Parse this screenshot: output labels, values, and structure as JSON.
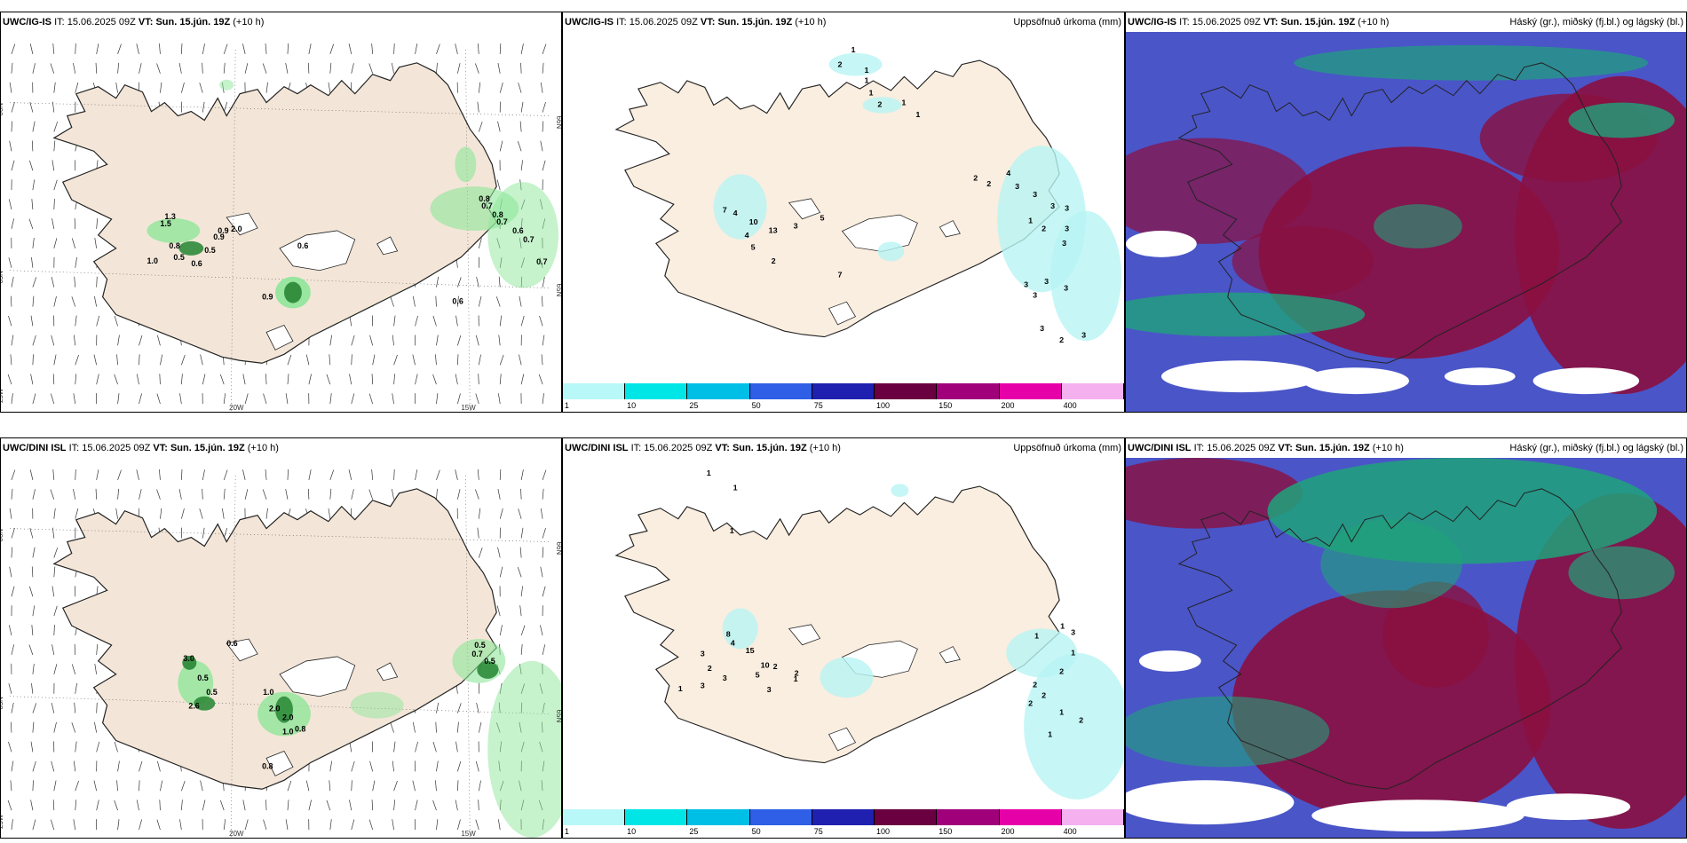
{
  "panels": [
    {
      "id": "tl",
      "model": "UWC/IG-IS",
      "it_label": "IT:",
      "it": "15.06.2025 09Z",
      "vt_label": "VT:",
      "vt": "Sun. 15.jún. 19Z",
      "lead": "(+10 h)",
      "title_right": "",
      "labels": [
        "1.3",
        "1.5",
        "0.8",
        "0.5",
        "0.9",
        "0.9",
        "2.0",
        "0.6",
        "1.0",
        "0.5",
        "0.6",
        "0.9",
        "0.8",
        "0.7",
        "0.8",
        "0.7",
        "0.6",
        "0.7",
        "0.7",
        "0.6"
      ],
      "axis": [
        "66N",
        "65N",
        "20W",
        "15W",
        "66N",
        "65N",
        "25W"
      ]
    },
    {
      "id": "tm",
      "model": "UWC/IG-IS",
      "it_label": "IT:",
      "it": "15.06.2025 09Z",
      "vt_label": "VT:",
      "vt": "Sun. 15.jún. 19Z",
      "lead": "(+10 h)",
      "title_right": "Uppsöfnuð úrkoma (mm)",
      "labels": [
        "1",
        "2",
        "1",
        "1",
        "1",
        "2",
        "1",
        "1",
        "2",
        "2",
        "4",
        "3",
        "3",
        "7",
        "4",
        "10",
        "4",
        "13",
        "5",
        "3",
        "5",
        "2",
        "7",
        "1",
        "2",
        "3",
        "3",
        "3",
        "3",
        "3",
        "3",
        "3",
        "3",
        "3",
        "2",
        "3"
      ]
    },
    {
      "id": "tr",
      "model": "UWC/IG-IS",
      "it_label": "IT:",
      "it": "15.06.2025 09Z",
      "vt_label": "VT:",
      "vt": "Sun. 15.jún. 19Z",
      "lead": "(+10 h)",
      "title_right": "Háský (gr.), miðský (fj.bl.) og lágský (bl.)"
    },
    {
      "id": "bl",
      "model": "UWC/DINI ISL",
      "it_label": "IT:",
      "it": "15.06.2025 09Z",
      "vt_label": "VT:",
      "vt": "Sun. 15.jún. 19Z",
      "lead": "(+10 h)",
      "title_right": "",
      "labels": [
        "3.0",
        "0.6",
        "0.5",
        "0.5",
        "2.6",
        "1.0",
        "2.0",
        "2.0",
        "1.0",
        "0.8",
        "0.8",
        "0.5",
        "0.7",
        "0.5"
      ],
      "axis": [
        "66N",
        "65N",
        "20W",
        "15W",
        "66N",
        "65N",
        "25W"
      ]
    },
    {
      "id": "bm",
      "model": "UWC/DINI ISL",
      "it_label": "IT:",
      "it": "15.06.2025 09Z",
      "vt_label": "VT:",
      "vt": "Sun. 15.jún. 19Z",
      "lead": "(+10 h)",
      "title_right": "Uppsöfnuð úrkoma (mm)",
      "labels": [
        "1",
        "1",
        "1",
        "8",
        "4",
        "15",
        "10",
        "5",
        "3",
        "2",
        "3",
        "3",
        "1",
        "3",
        "2",
        "2",
        "1",
        "1",
        "1",
        "3",
        "1",
        "2",
        "2",
        "2",
        "2",
        "1",
        "2",
        "1"
      ]
    },
    {
      "id": "br",
      "model": "UWC/DINI ISL",
      "it_label": "IT:",
      "it": "15.06.2025 09Z",
      "vt_label": "VT:",
      "vt": "Sun. 15.jún. 19Z",
      "lead": "(+10 h)",
      "title_right": "Háský (gr.), miðský (fj.bl.) og lágský (bl.)"
    }
  ],
  "colorbar": {
    "ticks": [
      "1",
      "10",
      "25",
      "50",
      "75",
      "100",
      "150",
      "200",
      "400"
    ],
    "colors": [
      "#b8f8f8",
      "#00e6e6",
      "#00bfe6",
      "#2e5fe6",
      "#2020b0",
      "#6a0040",
      "#a0007a",
      "#e600a8",
      "#f5b0f0"
    ]
  },
  "colors": {
    "land": "#f3e6d8",
    "land_precip": "#faeee0",
    "coast": "#222222",
    "green": "#2e8b3a",
    "cyan": "#b8f4f4",
    "cloud_high": "#1fa37a",
    "cloud_mid": "#8a1040",
    "cloud_low": "#4a55c8"
  }
}
